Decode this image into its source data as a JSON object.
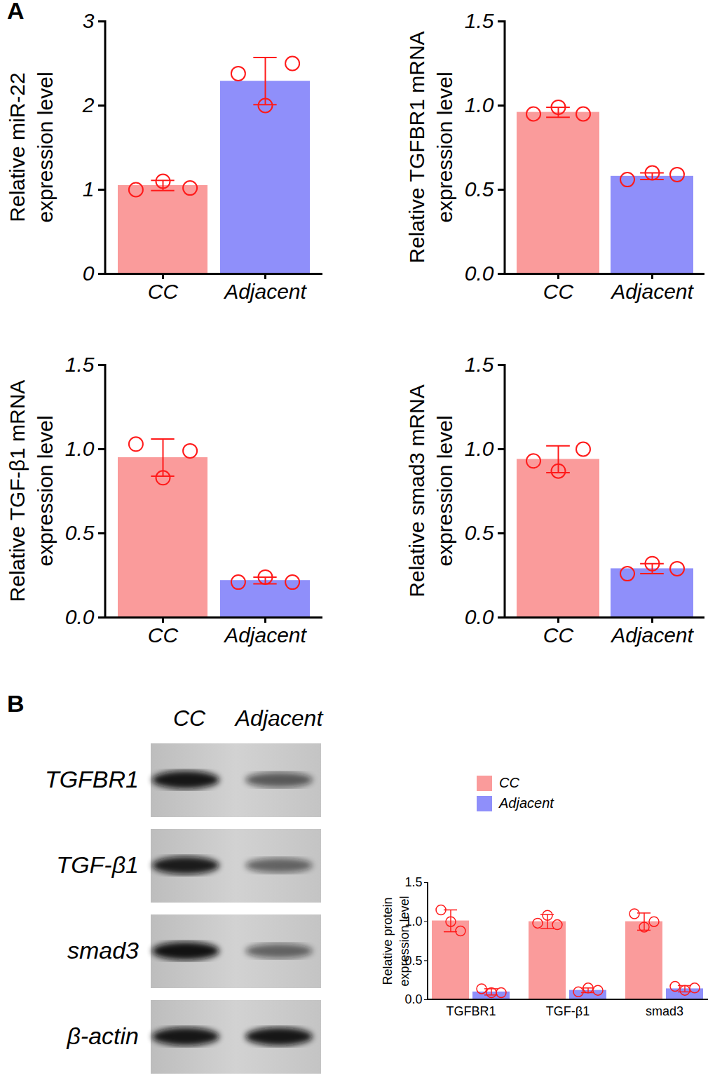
{
  "panel_labels": [
    "A",
    "B"
  ],
  "chart_data": [
    {
      "type": "bar",
      "ylabel": [
        "Relative miR-22",
        "expression level"
      ],
      "categories": [
        "CC",
        "Adjacent"
      ],
      "values": [
        1.05,
        2.29
      ],
      "colors": [
        "#fa9b9b",
        "#8f8ffa"
      ],
      "errors": [
        0.06,
        0.28
      ],
      "points": [
        [
          1.0,
          1.1,
          1.02
        ],
        [
          2.38,
          2.0,
          2.5
        ]
      ],
      "ylim": [
        0,
        3
      ],
      "yticks": [
        0,
        1,
        2,
        3
      ]
    },
    {
      "type": "bar",
      "ylabel": [
        "Relative TGFBR1 mRNA",
        "expression level"
      ],
      "categories": [
        "CC",
        "Adjacent"
      ],
      "values": [
        0.96,
        0.58
      ],
      "colors": [
        "#fa9b9b",
        "#8f8ffa"
      ],
      "errors": [
        0.03,
        0.02
      ],
      "points": [
        [
          0.95,
          0.99,
          0.95
        ],
        [
          0.56,
          0.6,
          0.59
        ]
      ],
      "ylim": [
        0,
        1.5
      ],
      "yticks": [
        {
          "value": 0,
          "label": "0.0"
        },
        {
          "value": 0.5,
          "label": "0.5"
        },
        {
          "value": 1,
          "label": "1.0"
        },
        {
          "value": 1.5,
          "label": "1.5"
        }
      ]
    },
    {
      "type": "bar",
      "ylabel": [
        "Relative TGF-β1 mRNA",
        "expression level"
      ],
      "categories": [
        "CC",
        "Adjacent"
      ],
      "values": [
        0.95,
        0.22
      ],
      "colors": [
        "#fa9b9b",
        "#8f8ffa"
      ],
      "errors": [
        0.11,
        0.02
      ],
      "points": [
        [
          1.03,
          0.83,
          0.99
        ],
        [
          0.21,
          0.24,
          0.21
        ]
      ],
      "ylim": [
        0,
        1.5
      ],
      "yticks": [
        {
          "value": 0,
          "label": "0.0"
        },
        {
          "value": 0.5,
          "label": "0.5"
        },
        {
          "value": 1,
          "label": "1.0"
        },
        {
          "value": 1.5,
          "label": "1.5"
        }
      ]
    },
    {
      "type": "bar",
      "ylabel": [
        "Relative smad3 mRNA",
        "expression level"
      ],
      "categories": [
        "CC",
        "Adjacent"
      ],
      "values": [
        0.94,
        0.29
      ],
      "colors": [
        "#fa9b9b",
        "#8f8ffa"
      ],
      "errors": [
        0.08,
        0.03
      ],
      "points": [
        [
          0.93,
          0.87,
          1.0
        ],
        [
          0.26,
          0.32,
          0.29
        ]
      ],
      "ylim": [
        0,
        1.5
      ],
      "yticks": [
        {
          "value": 0,
          "label": "0.0"
        },
        {
          "value": 0.5,
          "label": "0.5"
        },
        {
          "value": 1,
          "label": "1.0"
        },
        {
          "value": 1.5,
          "label": "1.5"
        }
      ]
    },
    {
      "type": "bar",
      "ylabel": [
        "Relative protein",
        "expression level"
      ],
      "categories": [
        "TGFBR1",
        "TGF-β1",
        "smad3"
      ],
      "legend": "top-left",
      "series": [
        {
          "name": "CC",
          "color": "#fa9b9b",
          "values": [
            1.01,
            1.0,
            1.0
          ],
          "errors": [
            0.14,
            0.09,
            0.11
          ],
          "points": [
            [
              1.15,
              1.0,
              0.88
            ],
            [
              0.98,
              1.08,
              0.96
            ],
            [
              1.1,
              0.93,
              1.0
            ]
          ]
        },
        {
          "name": "Adjacent",
          "color": "#8f8ffa",
          "values": [
            0.1,
            0.12,
            0.14
          ],
          "errors": [
            0.04,
            0.03,
            0.04
          ],
          "points": [
            [
              0.14,
              0.09,
              0.09
            ],
            [
              0.1,
              0.15,
              0.12
            ],
            [
              0.17,
              0.12,
              0.15
            ]
          ]
        }
      ],
      "ylim": [
        0,
        1.5
      ],
      "yticks": [
        {
          "value": 0,
          "label": "0.0"
        },
        {
          "value": 0.5,
          "label": "0.5"
        },
        {
          "value": 1,
          "label": "1.0"
        },
        {
          "value": 1.5,
          "label": "1.5"
        }
      ]
    }
  ],
  "blot": {
    "lanes": [
      "CC",
      "Adjacent"
    ],
    "bands": [
      "TGFBR1",
      "TGF-β1",
      "smad3",
      "β-actin"
    ]
  }
}
